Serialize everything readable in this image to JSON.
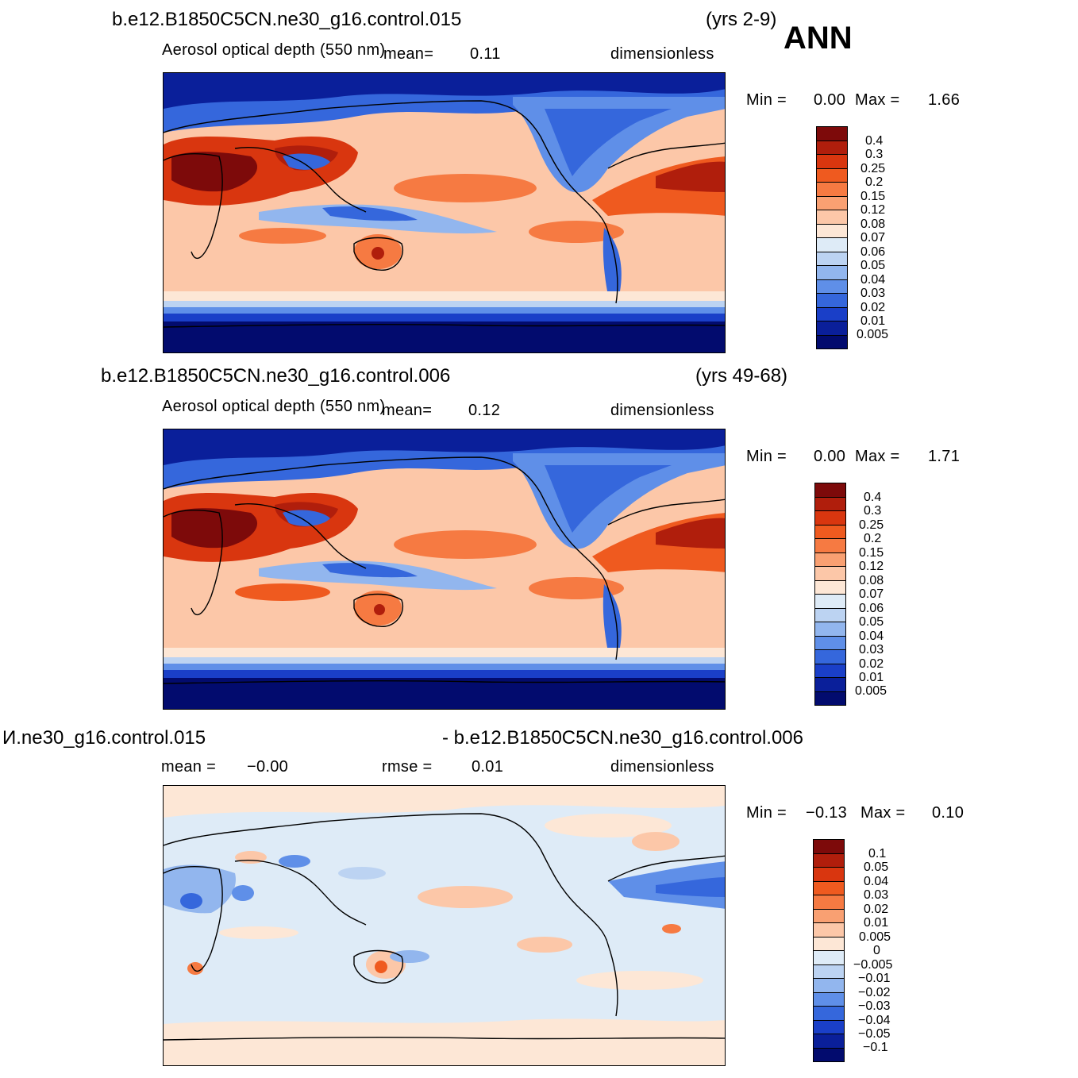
{
  "season": "ANN",
  "panels": [
    {
      "case": "b.e12.B1850C5CN.ne30_g16.control.015",
      "years": "(yrs 2-9)",
      "variable": "Aerosol optical depth (550 nm)",
      "stat1_label": "mean=",
      "stat1_value": "0.11",
      "stat2_label": "",
      "stat2_value": "",
      "units": "dimensionless",
      "min_label": "Min =",
      "min_value": "0.00",
      "max_label": "Max =",
      "max_value": "1.66",
      "levels": [
        "0.4",
        "0.3",
        "0.25",
        "0.2",
        "0.15",
        "0.12",
        "0.08",
        "0.07",
        "0.06",
        "0.05",
        "0.04",
        "0.03",
        "0.02",
        "0.01",
        "0.005"
      ]
    },
    {
      "case": "b.e12.B1850C5CN.ne30_g16.control.006",
      "years": "(yrs 49-68)",
      "variable": "Aerosol optical depth (550 nm)",
      "stat1_label": "mean=",
      "stat1_value": "0.12",
      "stat2_label": "",
      "stat2_value": "",
      "units": "dimensionless",
      "min_label": "Min =",
      "min_value": "0.00",
      "max_label": "Max =",
      "max_value": "1.71",
      "levels": [
        "0.4",
        "0.3",
        "0.25",
        "0.2",
        "0.15",
        "0.12",
        "0.08",
        "0.07",
        "0.06",
        "0.05",
        "0.04",
        "0.03",
        "0.02",
        "0.01",
        "0.005"
      ]
    },
    {
      "case_left": "И.ne30_g16.control.015",
      "case_right": "- b.e12.B1850C5CN.ne30_g16.control.006",
      "stat1_label": "mean =",
      "stat1_value": "−0.00",
      "stat2_label": "rmse =",
      "stat2_value": "0.01",
      "units": "dimensionless",
      "min_label": "Min =",
      "min_value": "−0.13",
      "max_label": "Max =",
      "max_value": "0.10",
      "levels": [
        "0.1",
        "0.05",
        "0.04",
        "0.03",
        "0.02",
        "0.01",
        "0.005",
        "0",
        "−0.005",
        "−0.01",
        "−0.02",
        "−0.03",
        "−0.04",
        "−0.05",
        "−0.1"
      ]
    }
  ],
  "colors": {
    "abs_scale": [
      "#7d0a0a",
      "#b01e0c",
      "#d9360f",
      "#ef5a1f",
      "#f67a42",
      "#f9a072",
      "#fcc7a8",
      "#fde7d6",
      "#deebf7",
      "#bcd3f2",
      "#92b6ee",
      "#5f8fe8",
      "#3567dc",
      "#1a3fc8",
      "#0a1f9a",
      "#020b6e"
    ],
    "diff_scale": [
      "#7d0a0a",
      "#b01e0c",
      "#d9360f",
      "#ef5a1f",
      "#f67a42",
      "#f9a072",
      "#fcc7a8",
      "#fde7d6",
      "#deebf7",
      "#bcd3f2",
      "#92b6ee",
      "#5f8fe8",
      "#3567dc",
      "#1a3fc8",
      "#0a1f9a",
      "#020b6e"
    ],
    "coastline": "#000000"
  }
}
